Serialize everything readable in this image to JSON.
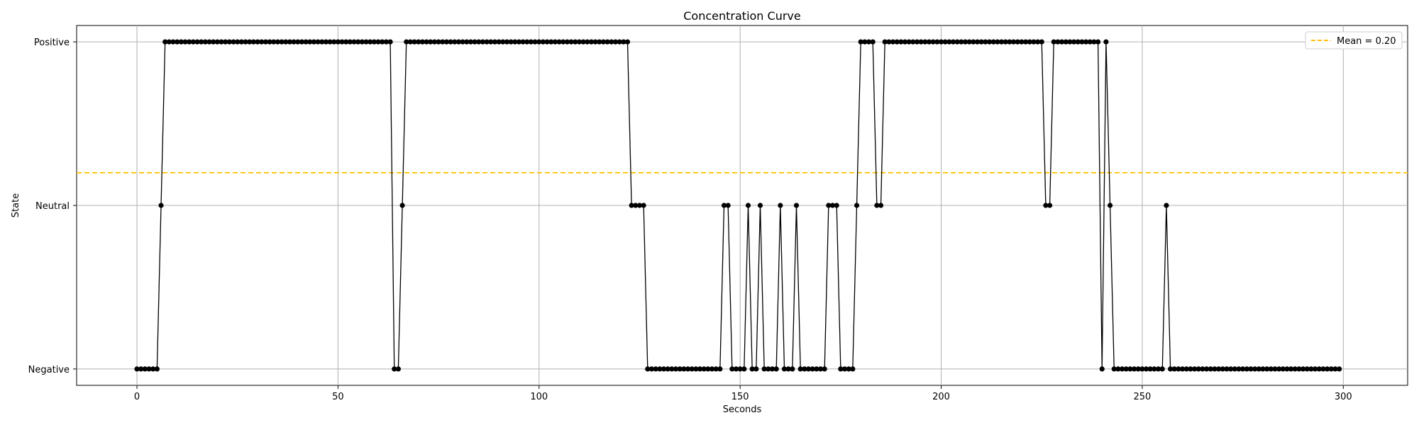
{
  "chart_data": {
    "type": "line",
    "title": "Concentration Curve",
    "xlabel": "Seconds",
    "ylabel": "State",
    "xlim": [
      -15,
      316
    ],
    "ylim": [
      -1.1,
      1.1
    ],
    "x_ticks": [
      0,
      50,
      100,
      150,
      200,
      250,
      300
    ],
    "y_ticks": [
      {
        "value": -1,
        "label": "Negative"
      },
      {
        "value": 0,
        "label": "Neutral"
      },
      {
        "value": 1,
        "label": "Positive"
      }
    ],
    "grid": true,
    "legend": {
      "placement": "top-right"
    },
    "mean_line": {
      "label": "Mean = 0.20",
      "value": 0.2,
      "color": "#FFC107",
      "style": "dashed"
    },
    "series": [
      {
        "color": "#000000",
        "marker": "circle",
        "x_start": 0,
        "x_step": 1,
        "runs": [
          {
            "value": -1,
            "count": 6
          },
          {
            "value": 0,
            "count": 1
          },
          {
            "value": 1,
            "count": 57
          },
          {
            "value": -1,
            "count": 2
          },
          {
            "value": 0,
            "count": 1
          },
          {
            "value": 1,
            "count": 56
          },
          {
            "value": 0,
            "count": 4
          },
          {
            "value": -1,
            "count": 19
          },
          {
            "value": 0,
            "count": 2
          },
          {
            "value": -1,
            "count": 4
          },
          {
            "value": 0,
            "count": 1
          },
          {
            "value": -1,
            "count": 2
          },
          {
            "value": 0,
            "count": 1
          },
          {
            "value": -1,
            "count": 4
          },
          {
            "value": 0,
            "count": 1
          },
          {
            "value": -1,
            "count": 3
          },
          {
            "value": 0,
            "count": 1
          },
          {
            "value": -1,
            "count": 7
          },
          {
            "value": 0,
            "count": 3
          },
          {
            "value": -1,
            "count": 4
          },
          {
            "value": 0,
            "count": 1
          },
          {
            "value": 1,
            "count": 4
          },
          {
            "value": 0,
            "count": 2
          },
          {
            "value": 1,
            "count": 40
          },
          {
            "value": 0,
            "count": 2
          },
          {
            "value": 1,
            "count": 12
          },
          {
            "value": -1,
            "count": 1
          },
          {
            "value": 1,
            "count": 1
          },
          {
            "value": 0,
            "count": 1
          },
          {
            "value": -1,
            "count": 13
          },
          {
            "value": 0,
            "count": 1
          },
          {
            "value": -1,
            "count": 43
          }
        ]
      }
    ]
  }
}
